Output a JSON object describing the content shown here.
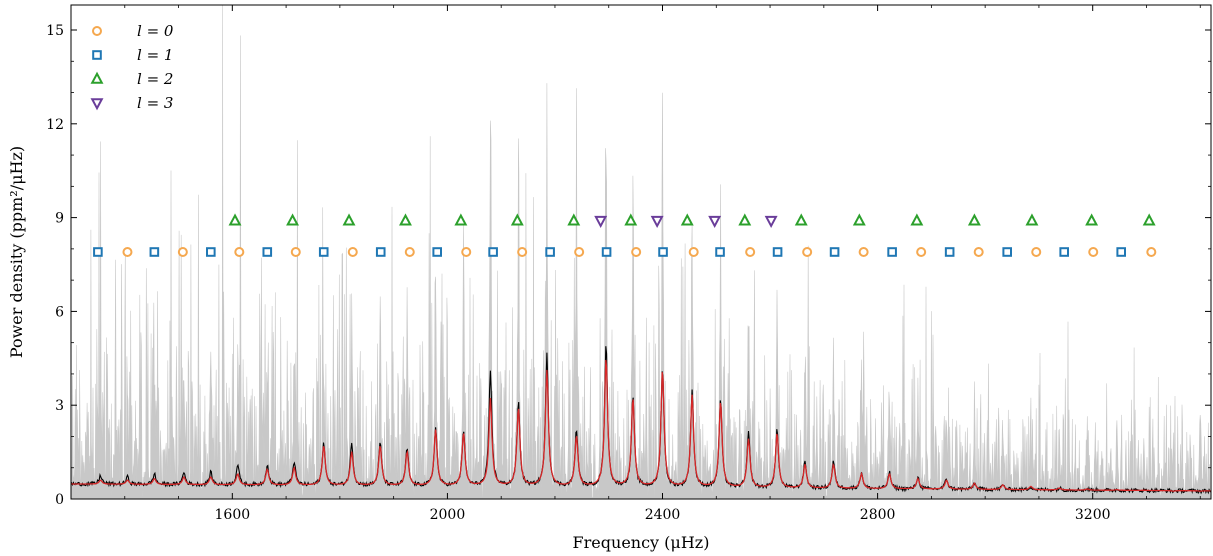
{
  "chart_data": {
    "type": "line",
    "xlabel": "Frequency (μHz)",
    "ylabel": "Power density (ppm²/μHz)",
    "xlim": [
      1300,
      3420
    ],
    "ylim": [
      0,
      15.8
    ],
    "x_ticks": [
      1600,
      2000,
      2400,
      2800,
      3200
    ],
    "y_ticks": [
      0,
      3,
      6,
      9,
      12,
      15
    ],
    "legend_placement": "top-left",
    "grid": false,
    "colors": {
      "raw_spectrum": "#c8c8c8",
      "smoothed_spectrum": "#000000",
      "model_fit": "#d62728",
      "l0": "#f5a84f",
      "l1": "#1f77b4",
      "l2": "#2ca02c",
      "l3": "#6a3d9a"
    },
    "spectrum_peaks": [
      {
        "x": 1355,
        "raw": 5.0,
        "smooth": 0.75,
        "fit": 0.6
      },
      {
        "x": 1405,
        "raw": 4.8,
        "smooth": 0.7,
        "fit": 0.6
      },
      {
        "x": 1455,
        "raw": 5.2,
        "smooth": 0.8,
        "fit": 0.65
      },
      {
        "x": 1510,
        "raw": 5.5,
        "smooth": 0.85,
        "fit": 0.7
      },
      {
        "x": 1560,
        "raw": 8.2,
        "smooth": 0.85,
        "fit": 0.7
      },
      {
        "x": 1610,
        "raw": 5.8,
        "smooth": 1.1,
        "fit": 0.8
      },
      {
        "x": 1665,
        "raw": 6.0,
        "smooth": 1.1,
        "fit": 0.95
      },
      {
        "x": 1715,
        "raw": 6.8,
        "smooth": 1.2,
        "fit": 1.0
      },
      {
        "x": 1770,
        "raw": 6.5,
        "smooth": 1.8,
        "fit": 1.7
      },
      {
        "x": 1822,
        "raw": 7.5,
        "smooth": 1.8,
        "fit": 1.5
      },
      {
        "x": 1875,
        "raw": 7.2,
        "smooth": 1.8,
        "fit": 1.7
      },
      {
        "x": 1925,
        "raw": 8.5,
        "smooth": 1.6,
        "fit": 1.5
      },
      {
        "x": 1978,
        "raw": 9.2,
        "smooth": 2.3,
        "fit": 2.2
      },
      {
        "x": 2030,
        "raw": 9.5,
        "smooth": 2.2,
        "fit": 2.1
      },
      {
        "x": 2080,
        "raw": 15.8,
        "smooth": 4.1,
        "fit": 3.2
      },
      {
        "x": 2132,
        "raw": 14.0,
        "smooth": 3.1,
        "fit": 2.9
      },
      {
        "x": 2185,
        "raw": 15.8,
        "smooth": 4.6,
        "fit": 4.1
      },
      {
        "x": 2240,
        "raw": 13.5,
        "smooth": 2.2,
        "fit": 2.0
      },
      {
        "x": 2295,
        "raw": 15.8,
        "smooth": 5.0,
        "fit": 4.5
      },
      {
        "x": 2345,
        "raw": 14.5,
        "smooth": 3.3,
        "fit": 3.2
      },
      {
        "x": 2400,
        "raw": 14.2,
        "smooth": 4.2,
        "fit": 4.1
      },
      {
        "x": 2455,
        "raw": 10.5,
        "smooth": 3.5,
        "fit": 3.3
      },
      {
        "x": 2508,
        "raw": 10.8,
        "smooth": 3.2,
        "fit": 3.1
      },
      {
        "x": 2560,
        "raw": 8.8,
        "smooth": 2.1,
        "fit": 1.9
      },
      {
        "x": 2613,
        "raw": 8.2,
        "smooth": 2.2,
        "fit": 2.1
      },
      {
        "x": 2665,
        "raw": 6.5,
        "smooth": 1.2,
        "fit": 1.1
      },
      {
        "x": 2718,
        "raw": 6.2,
        "smooth": 1.2,
        "fit": 1.1
      },
      {
        "x": 2770,
        "raw": 5.0,
        "smooth": 0.85,
        "fit": 0.8
      },
      {
        "x": 2822,
        "raw": 4.9,
        "smooth": 0.85,
        "fit": 0.8
      },
      {
        "x": 2875,
        "raw": 4.6,
        "smooth": 0.7,
        "fit": 0.65
      },
      {
        "x": 2928,
        "raw": 4.3,
        "smooth": 0.65,
        "fit": 0.6
      },
      {
        "x": 2980,
        "raw": 3.9,
        "smooth": 0.5,
        "fit": 0.5
      },
      {
        "x": 3033,
        "raw": 3.6,
        "smooth": 0.45,
        "fit": 0.45
      },
      {
        "x": 3085,
        "raw": 3.3,
        "smooth": 0.4,
        "fit": 0.4
      },
      {
        "x": 3138,
        "raw": 3.0,
        "smooth": 0.35,
        "fit": 0.35
      },
      {
        "x": 3190,
        "raw": 2.8,
        "smooth": 0.32,
        "fit": 0.32
      },
      {
        "x": 3245,
        "raw": 2.6,
        "smooth": 0.3,
        "fit": 0.3
      },
      {
        "x": 3295,
        "raw": 2.5,
        "smooth": 0.28,
        "fit": 0.28
      },
      {
        "x": 3350,
        "raw": 2.4,
        "smooth": 0.25,
        "fit": 0.25
      },
      {
        "x": 3400,
        "raw": 3.8,
        "smooth": 0.25,
        "fit": 0.25
      }
    ],
    "series": [
      {
        "name": "l = 0",
        "marker": "circle",
        "y": 7.9,
        "x": [
          1405,
          1508,
          1613,
          1718,
          1824,
          1930,
          2035,
          2139,
          2245,
          2351,
          2458,
          2563,
          2669,
          2774,
          2881,
          2988,
          3095,
          3201,
          3309
        ]
      },
      {
        "name": "l = 1",
        "marker": "square",
        "y": 7.9,
        "x": [
          1350,
          1455,
          1560,
          1665,
          1770,
          1876,
          1981,
          2085,
          2191,
          2296,
          2401,
          2507,
          2614,
          2720,
          2827,
          2934,
          3041,
          3147,
          3253
        ]
      },
      {
        "name": "l = 2",
        "marker": "triangle-up",
        "y": 8.9,
        "x": [
          1605,
          1712,
          1817,
          1922,
          2025,
          2130,
          2235,
          2341,
          2446,
          2553,
          2658,
          2766,
          2873,
          2980,
          3087,
          3198,
          3305
        ]
      },
      {
        "name": "l = 3",
        "marker": "triangle-down",
        "y": 8.9,
        "x": [
          2285,
          2390,
          2497,
          2602
        ]
      }
    ]
  }
}
